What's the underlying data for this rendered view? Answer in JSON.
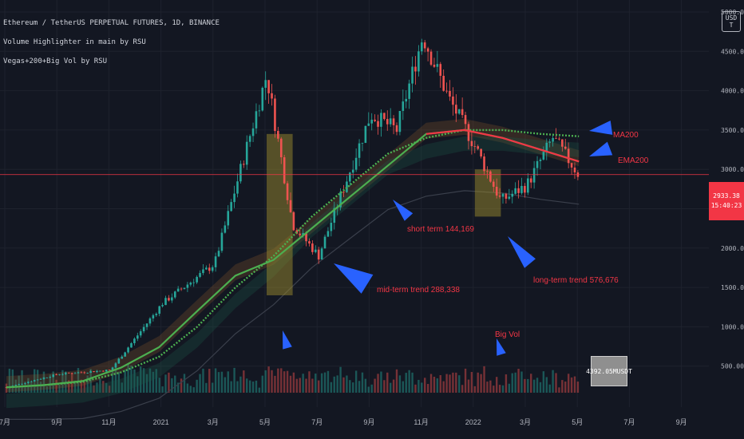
{
  "legend": {
    "symbol_line": "Ethereum / TetherUS PERPETUAL FUTURES, 1D, BINANCE",
    "indicator_1": "Volume Highlighter in main by RSU",
    "indicator_2": "Vegas+200+Big Vol by RSU"
  },
  "currency_button": [
    "USD",
    "T"
  ],
  "price_tag": {
    "price": "2933.38",
    "countdown": "15:40:23"
  },
  "volume_tag": "4392.05MUSDT",
  "annotations": {
    "ma200": "MA200",
    "ema200": "EMA200",
    "short_term": "short term 144,169",
    "mid_term": "mid-term trend 288,338",
    "long_term": "long-term trend 576,676",
    "big_vol": "Big Vol"
  },
  "colors": {
    "background": "#131722",
    "grid": "#1e222d",
    "up_candle": "#26a69a",
    "down_candle": "#ef5350",
    "ma200": "#4caf50",
    "ema200": "#f23645",
    "annotation_text": "#f23645",
    "arrow": "#2962ff",
    "big_vol_box": "#9a8a2e"
  },
  "chart_data": {
    "type": "candlestick",
    "title": "Ethereum / TetherUS PERPETUAL FUTURES, 1D, BINANCE",
    "y_ticks": [
      "5000.00",
      "4500.00",
      "4000.00",
      "3500.00",
      "3000.00",
      "2500.00",
      "2000.00",
      "1500.00",
      "1000.00",
      "500.00"
    ],
    "x_ticks": [
      "7月",
      "9月",
      "11月",
      "2021",
      "3月",
      "5月",
      "7月",
      "9月",
      "11月",
      "2022",
      "3月",
      "5月",
      "7月",
      "9月"
    ],
    "ylim": [
      0,
      5100
    ],
    "close_path": [
      {
        "t": "2020-07",
        "v": 230
      },
      {
        "t": "2020-09",
        "v": 400
      },
      {
        "t": "2020-11",
        "v": 450
      },
      {
        "t": "2021-01",
        "v": 1300
      },
      {
        "t": "2021-03",
        "v": 1800
      },
      {
        "t": "2021-05",
        "v": 4200
      },
      {
        "t": "2021-06",
        "v": 2300
      },
      {
        "t": "2021-07",
        "v": 1900
      },
      {
        "t": "2021-09",
        "v": 3700
      },
      {
        "t": "2021-10",
        "v": 3500
      },
      {
        "t": "2021-11",
        "v": 4700
      },
      {
        "t": "2021-12",
        "v": 3900
      },
      {
        "t": "2022-01",
        "v": 3300
      },
      {
        "t": "2022-02",
        "v": 2600
      },
      {
        "t": "2022-03",
        "v": 2800
      },
      {
        "t": "2022-04",
        "v": 3400
      },
      {
        "t": "2022-05",
        "v": 2933
      }
    ],
    "series": [
      {
        "name": "MA200",
        "values": [
          230,
          260,
          300,
          420,
          620,
          1000,
          1500,
          1900,
          2400,
          2800,
          3200,
          3400,
          3500,
          3500,
          3450,
          3420
        ]
      },
      {
        "name": "EMA200",
        "values": [
          230,
          260,
          310,
          480,
          740,
          1200,
          1650,
          1850,
          2250,
          2650,
          3050,
          3450,
          3500,
          3400,
          3250,
          3100
        ]
      }
    ],
    "last_price": 2933.38,
    "last_volume": "4392.05MUSDT"
  }
}
